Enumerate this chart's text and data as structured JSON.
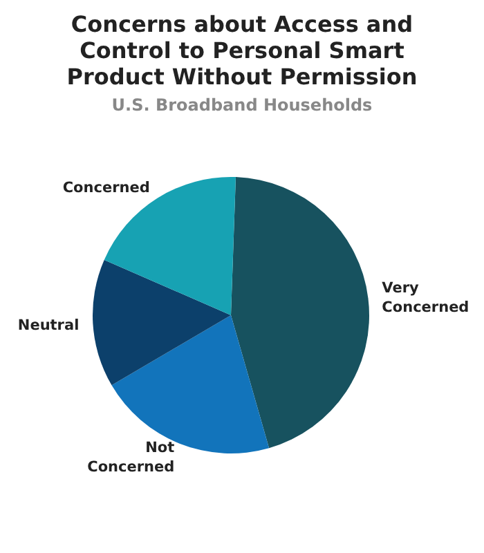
{
  "chart_data": {
    "type": "pie",
    "title": "Concerns about Access and Control to Personal Smart Product Without Permission",
    "subtitle": "U.S. Broadband Households",
    "categories": [
      "Very Concerned",
      "Not Concerned",
      "Neutral",
      "Concerned"
    ],
    "values": [
      45,
      21,
      15,
      19
    ],
    "colors": [
      "#17525f",
      "#1274bb",
      "#0c406b",
      "#17a2b3"
    ]
  }
}
